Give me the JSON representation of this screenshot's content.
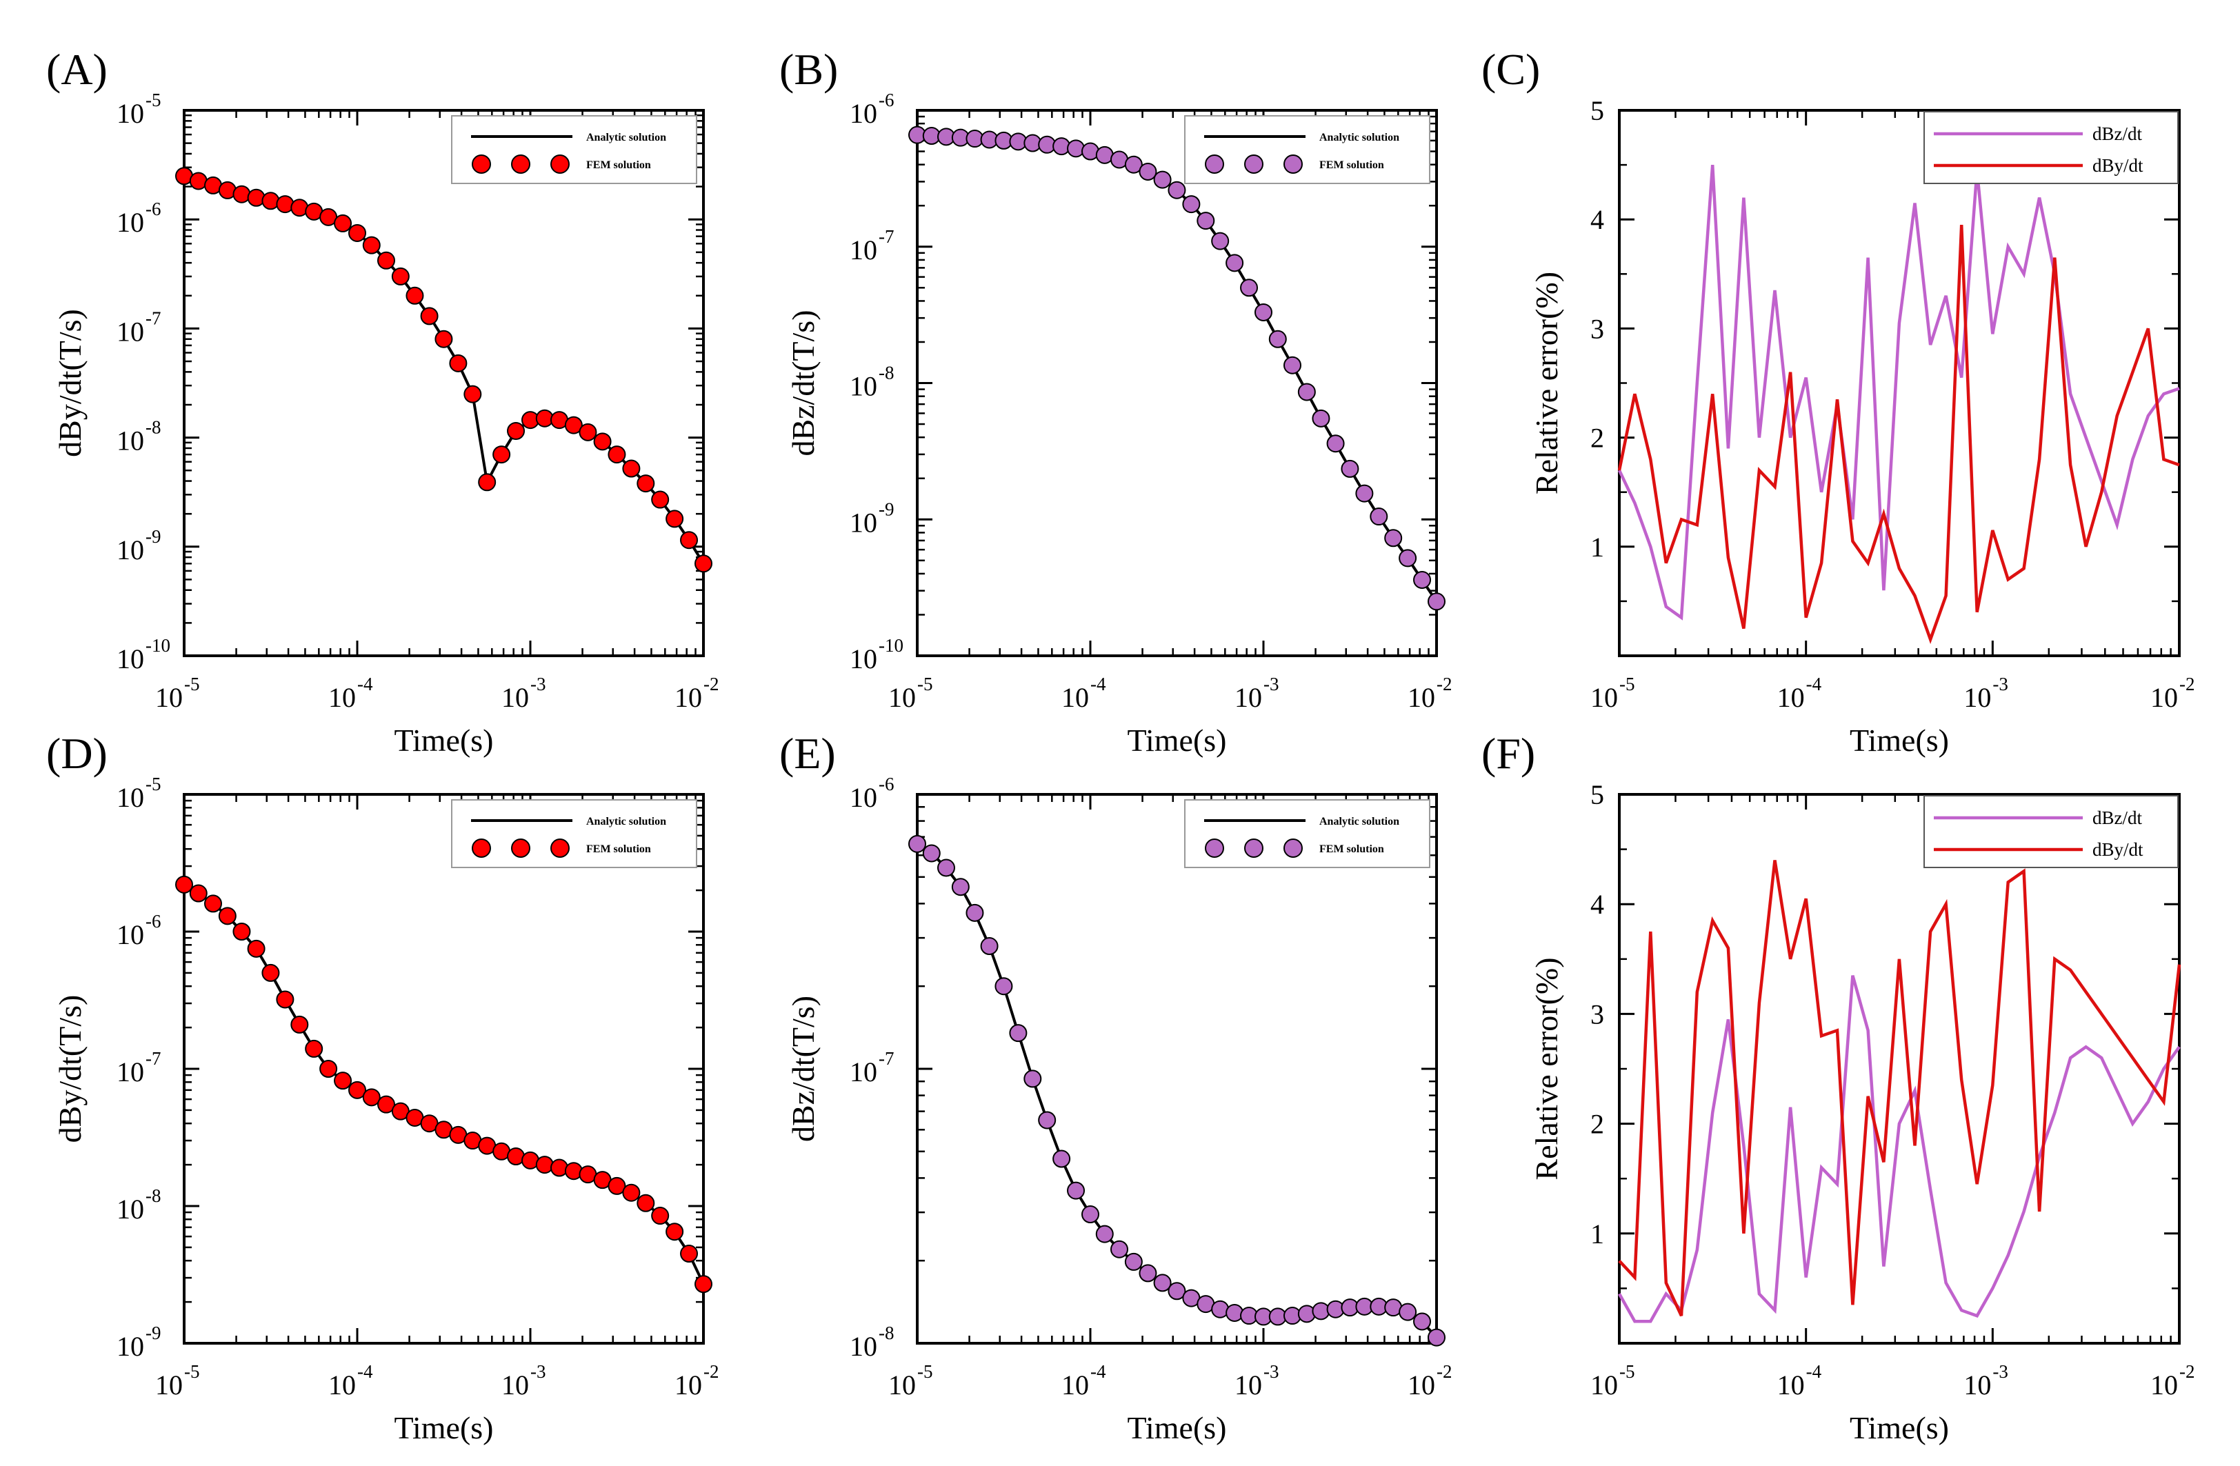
{
  "colors": {
    "analytic": "#000000",
    "red_marker": "#ff0000",
    "purple_marker": "#b86cc4",
    "line_dBz": "#c062cc",
    "line_dBy": "#dd1010"
  },
  "chart_data": [
    {
      "id": "A",
      "panel_label": "(A)",
      "type": "line+scatter",
      "yscale": "log",
      "xlabel": "Time(s)",
      "ylabel": "dBy/dt(T/s)",
      "x_ticks": [
        "10",
        "10",
        "10",
        "10"
      ],
      "x_tick_exponents": [
        "-5",
        "-4",
        "-3",
        "-2"
      ],
      "y_ticks": [
        "10",
        "10",
        "10",
        "10",
        "10",
        "10"
      ],
      "y_tick_exponents": [
        "-5",
        "-6",
        "-7",
        "-8",
        "-9",
        "-10"
      ],
      "xlim": [
        1e-05,
        0.01
      ],
      "ylim": [
        1e-10,
        1e-05
      ],
      "legend_position": "top-right",
      "legend": [
        "Analytic solution",
        "FEM solution"
      ],
      "marker_color": "red_marker",
      "x": [
        1e-05,
        1.21e-05,
        1.47e-05,
        1.78e-05,
        2.15e-05,
        2.61e-05,
        3.16e-05,
        3.83e-05,
        4.64e-05,
        5.62e-05,
        6.81e-05,
        8.25e-05,
        0.0001,
        0.000121,
        0.000147,
        0.000178,
        0.000215,
        0.000261,
        0.000316,
        0.000383,
        0.000464,
        0.000562,
        0.000681,
        0.000825,
        0.001,
        0.00121,
        0.00147,
        0.00178,
        0.00215,
        0.00261,
        0.00316,
        0.00383,
        0.00464,
        0.00562,
        0.00681,
        0.00825,
        0.01
      ],
      "y": [
        2.5e-06,
        2.25e-06,
        2.05e-06,
        1.85e-06,
        1.7e-06,
        1.58e-06,
        1.48e-06,
        1.38e-06,
        1.28e-06,
        1.18e-06,
        1.05e-06,
        9.2e-07,
        7.5e-07,
        5.8e-07,
        4.2e-07,
        3e-07,
        2e-07,
        1.3e-07,
        8e-08,
        4.8e-08,
        2.5e-08,
        3.9e-09,
        7e-09,
        1.15e-08,
        1.45e-08,
        1.5e-08,
        1.45e-08,
        1.3e-08,
        1.12e-08,
        9.2e-09,
        7e-09,
        5.2e-09,
        3.8e-09,
        2.7e-09,
        1.8e-09,
        1.15e-09,
        7e-10
      ]
    },
    {
      "id": "B",
      "panel_label": "(B)",
      "type": "line+scatter",
      "yscale": "log",
      "xlabel": "Time(s)",
      "ylabel": "dBz/dt(T/s)",
      "x_ticks": [
        "10",
        "10",
        "10",
        "10"
      ],
      "x_tick_exponents": [
        "-5",
        "-4",
        "-3",
        "-2"
      ],
      "y_ticks": [
        "10",
        "10",
        "10",
        "10",
        "10"
      ],
      "y_tick_exponents": [
        "-6",
        "-7",
        "-8",
        "-9",
        "-10"
      ],
      "xlim": [
        1e-05,
        0.01
      ],
      "ylim": [
        1e-10,
        1e-06
      ],
      "legend_position": "top-right",
      "legend": [
        "Analytic solution",
        "FEM solution"
      ],
      "marker_color": "purple_marker",
      "x": [
        1e-05,
        1.21e-05,
        1.47e-05,
        1.78e-05,
        2.15e-05,
        2.61e-05,
        3.16e-05,
        3.83e-05,
        4.64e-05,
        5.62e-05,
        6.81e-05,
        8.25e-05,
        0.0001,
        0.000121,
        0.000147,
        0.000178,
        0.000215,
        0.000261,
        0.000316,
        0.000383,
        0.000464,
        0.000562,
        0.000681,
        0.000825,
        0.001,
        0.00121,
        0.00147,
        0.00178,
        0.00215,
        0.00261,
        0.00316,
        0.00383,
        0.00464,
        0.00562,
        0.00681,
        0.00825,
        0.01
      ],
      "y": [
        6.6e-07,
        6.5e-07,
        6.4e-07,
        6.3e-07,
        6.2e-07,
        6.1e-07,
        6e-07,
        5.9e-07,
        5.75e-07,
        5.6e-07,
        5.45e-07,
        5.25e-07,
        5e-07,
        4.7e-07,
        4.35e-07,
        4e-07,
        3.55e-07,
        3.1e-07,
        2.6e-07,
        2.05e-07,
        1.55e-07,
        1.1e-07,
        7.6e-08,
        5e-08,
        3.3e-08,
        2.1e-08,
        1.35e-08,
        8.6e-09,
        5.5e-09,
        3.6e-09,
        2.35e-09,
        1.55e-09,
        1.05e-09,
        7.3e-10,
        5.2e-10,
        3.6e-10,
        2.5e-10
      ]
    },
    {
      "id": "C",
      "panel_label": "(C)",
      "type": "line",
      "yscale": "linear",
      "xlabel": "Time(s)",
      "ylabel": "Relative error(%)",
      "x_ticks": [
        "10",
        "10",
        "10",
        "10"
      ],
      "x_tick_exponents": [
        "-5",
        "-4",
        "-3",
        "-2"
      ],
      "y_ticks": [
        "1",
        "2",
        "3",
        "4",
        "5"
      ],
      "xlim": [
        1e-05,
        0.01
      ],
      "ylim": [
        0,
        5
      ],
      "legend_position": "top-right",
      "series": [
        {
          "name": "dBz/dt",
          "color": "line_dBz",
          "x": [
            1e-05,
            1.21e-05,
            1.47e-05,
            1.78e-05,
            2.15e-05,
            2.61e-05,
            3.16e-05,
            3.83e-05,
            4.64e-05,
            5.62e-05,
            6.81e-05,
            8.25e-05,
            0.0001,
            0.000121,
            0.000147,
            0.000178,
            0.000215,
            0.000261,
            0.000316,
            0.000383,
            0.000464,
            0.000562,
            0.000681,
            0.000825,
            0.001,
            0.00121,
            0.00147,
            0.00178,
            0.00215,
            0.00261,
            0.00316,
            0.00383,
            0.00464,
            0.00562,
            0.00681,
            0.00825,
            0.01
          ],
          "y": [
            1.7,
            1.4,
            1.0,
            0.45,
            0.35,
            2.5,
            4.5,
            1.9,
            4.2,
            2.0,
            3.35,
            2.0,
            2.55,
            1.5,
            2.3,
            1.25,
            3.65,
            0.6,
            3.05,
            4.15,
            2.85,
            3.3,
            2.55,
            4.45,
            2.95,
            3.75,
            3.5,
            4.2,
            3.5,
            2.4,
            2.0,
            1.6,
            1.2,
            1.8,
            2.2,
            2.4,
            2.45
          ]
        },
        {
          "name": "dBy/dt",
          "color": "line_dBy",
          "x": [
            1e-05,
            1.21e-05,
            1.47e-05,
            1.78e-05,
            2.15e-05,
            2.61e-05,
            3.16e-05,
            3.83e-05,
            4.64e-05,
            5.62e-05,
            6.81e-05,
            8.25e-05,
            0.0001,
            0.000121,
            0.000147,
            0.000178,
            0.000215,
            0.000261,
            0.000316,
            0.000383,
            0.000464,
            0.000562,
            0.000681,
            0.000825,
            0.001,
            0.00121,
            0.00147,
            0.00178,
            0.00215,
            0.00261,
            0.00316,
            0.00383,
            0.00464,
            0.00562,
            0.00681,
            0.00825,
            0.01
          ],
          "y": [
            1.7,
            2.4,
            1.8,
            0.85,
            1.25,
            1.2,
            2.4,
            0.9,
            0.25,
            1.7,
            1.55,
            2.6,
            0.35,
            0.85,
            2.35,
            1.05,
            0.85,
            1.3,
            0.8,
            0.55,
            0.15,
            0.55,
            3.95,
            0.4,
            1.15,
            0.7,
            0.8,
            1.8,
            3.65,
            1.75,
            1.0,
            1.5,
            2.2,
            2.6,
            3.0,
            1.8,
            1.75
          ]
        }
      ]
    },
    {
      "id": "D",
      "panel_label": "(D)",
      "type": "line+scatter",
      "yscale": "log",
      "xlabel": "Time(s)",
      "ylabel": "dBy/dt(T/s)",
      "x_ticks": [
        "10",
        "10",
        "10",
        "10"
      ],
      "x_tick_exponents": [
        "-5",
        "-4",
        "-3",
        "-2"
      ],
      "y_ticks": [
        "10",
        "10",
        "10",
        "10",
        "10"
      ],
      "y_tick_exponents": [
        "-5",
        "-6",
        "-7",
        "-8",
        "-9"
      ],
      "xlim": [
        1e-05,
        0.01
      ],
      "ylim": [
        1e-09,
        1e-05
      ],
      "legend_position": "top-right",
      "legend": [
        "Analytic solution",
        "FEM solution"
      ],
      "marker_color": "red_marker",
      "x": [
        1e-05,
        1.21e-05,
        1.47e-05,
        1.78e-05,
        2.15e-05,
        2.61e-05,
        3.16e-05,
        3.83e-05,
        4.64e-05,
        5.62e-05,
        6.81e-05,
        8.25e-05,
        0.0001,
        0.000121,
        0.000147,
        0.000178,
        0.000215,
        0.000261,
        0.000316,
        0.000383,
        0.000464,
        0.000562,
        0.000681,
        0.000825,
        0.001,
        0.00121,
        0.00147,
        0.00178,
        0.00215,
        0.00261,
        0.00316,
        0.00383,
        0.00464,
        0.00562,
        0.00681,
        0.00825,
        0.01
      ],
      "y": [
        2.2e-06,
        1.9e-06,
        1.6e-06,
        1.3e-06,
        1e-06,
        7.5e-07,
        5e-07,
        3.2e-07,
        2.1e-07,
        1.4e-07,
        1e-07,
        8.2e-08,
        7e-08,
        6.2e-08,
        5.5e-08,
        4.9e-08,
        4.4e-08,
        4e-08,
        3.6e-08,
        3.3e-08,
        3e-08,
        2.75e-08,
        2.5e-08,
        2.3e-08,
        2.15e-08,
        2e-08,
        1.9e-08,
        1.8e-08,
        1.7e-08,
        1.55e-08,
        1.4e-08,
        1.25e-08,
        1.05e-08,
        8.5e-09,
        6.5e-09,
        4.5e-09,
        2.7e-09
      ]
    },
    {
      "id": "E",
      "panel_label": "(E)",
      "type": "line+scatter",
      "yscale": "log",
      "xlabel": "Time(s)",
      "ylabel": "dBz/dt(T/s)",
      "x_ticks": [
        "10",
        "10",
        "10",
        "10"
      ],
      "x_tick_exponents": [
        "-5",
        "-4",
        "-3",
        "-2"
      ],
      "y_ticks": [
        "10",
        "10",
        "10"
      ],
      "y_tick_exponents": [
        "-6",
        "-7",
        "-8"
      ],
      "xlim": [
        1e-05,
        0.01
      ],
      "ylim": [
        1e-08,
        1e-06
      ],
      "legend_position": "top-right",
      "legend": [
        "Analytic solution",
        "FEM solution"
      ],
      "marker_color": "purple_marker",
      "x": [
        1e-05,
        1.21e-05,
        1.47e-05,
        1.78e-05,
        2.15e-05,
        2.61e-05,
        3.16e-05,
        3.83e-05,
        4.64e-05,
        5.62e-05,
        6.81e-05,
        8.25e-05,
        0.0001,
        0.000121,
        0.000147,
        0.000178,
        0.000215,
        0.000261,
        0.000316,
        0.000383,
        0.000464,
        0.000562,
        0.000681,
        0.000825,
        0.001,
        0.00121,
        0.00147,
        0.00178,
        0.00215,
        0.00261,
        0.00316,
        0.00383,
        0.00464,
        0.00562,
        0.00681,
        0.00825,
        0.01
      ],
      "y": [
        6.6e-07,
        6.1e-07,
        5.4e-07,
        4.6e-07,
        3.7e-07,
        2.8e-07,
        2e-07,
        1.35e-07,
        9.2e-08,
        6.5e-08,
        4.7e-08,
        3.6e-08,
        2.95e-08,
        2.5e-08,
        2.2e-08,
        1.98e-08,
        1.8e-08,
        1.66e-08,
        1.55e-08,
        1.46e-08,
        1.39e-08,
        1.33e-08,
        1.29e-08,
        1.26e-08,
        1.25e-08,
        1.25e-08,
        1.26e-08,
        1.28e-08,
        1.31e-08,
        1.33e-08,
        1.35e-08,
        1.36e-08,
        1.36e-08,
        1.35e-08,
        1.3e-08,
        1.2e-08,
        1.05e-08
      ]
    },
    {
      "id": "F",
      "panel_label": "(F)",
      "type": "line",
      "yscale": "linear",
      "xlabel": "Time(s)",
      "ylabel": "Relative error(%)",
      "x_ticks": [
        "10",
        "10",
        "10",
        "10"
      ],
      "x_tick_exponents": [
        "-5",
        "-4",
        "-3",
        "-2"
      ],
      "y_ticks": [
        "1",
        "2",
        "3",
        "4",
        "5"
      ],
      "xlim": [
        1e-05,
        0.01
      ],
      "ylim": [
        0,
        5
      ],
      "legend_position": "top-right",
      "series": [
        {
          "name": "dBz/dt",
          "color": "line_dBz",
          "x": [
            1e-05,
            1.21e-05,
            1.47e-05,
            1.78e-05,
            2.15e-05,
            2.61e-05,
            3.16e-05,
            3.83e-05,
            4.64e-05,
            5.62e-05,
            6.81e-05,
            8.25e-05,
            0.0001,
            0.000121,
            0.000147,
            0.000178,
            0.000215,
            0.000261,
            0.000316,
            0.000383,
            0.000464,
            0.000562,
            0.000681,
            0.000825,
            0.001,
            0.00121,
            0.00147,
            0.00178,
            0.00215,
            0.00261,
            0.00316,
            0.00383,
            0.00464,
            0.00562,
            0.00681,
            0.00825,
            0.01
          ],
          "y": [
            0.45,
            0.2,
            0.2,
            0.45,
            0.3,
            0.85,
            2.1,
            2.95,
            1.8,
            0.45,
            0.3,
            2.15,
            0.6,
            1.6,
            1.45,
            3.35,
            2.85,
            0.7,
            2.0,
            2.3,
            1.4,
            0.55,
            0.3,
            0.25,
            0.5,
            0.8,
            1.2,
            1.7,
            2.1,
            2.6,
            2.7,
            2.6,
            2.3,
            2.0,
            2.2,
            2.5,
            2.7
          ]
        },
        {
          "name": "dBy/dt",
          "color": "line_dBy",
          "x": [
            1e-05,
            1.21e-05,
            1.47e-05,
            1.78e-05,
            2.15e-05,
            2.61e-05,
            3.16e-05,
            3.83e-05,
            4.64e-05,
            5.62e-05,
            6.81e-05,
            8.25e-05,
            0.0001,
            0.000121,
            0.000147,
            0.000178,
            0.000215,
            0.000261,
            0.000316,
            0.000383,
            0.000464,
            0.000562,
            0.000681,
            0.000825,
            0.001,
            0.00121,
            0.00147,
            0.00178,
            0.00215,
            0.00261,
            0.00316,
            0.00383,
            0.00464,
            0.00562,
            0.00681,
            0.00825,
            0.01
          ],
          "y": [
            0.75,
            0.6,
            3.75,
            0.55,
            0.25,
            3.2,
            3.85,
            3.6,
            1.0,
            3.1,
            4.4,
            3.5,
            4.05,
            2.8,
            2.85,
            0.35,
            2.25,
            1.65,
            3.5,
            1.8,
            3.75,
            4.0,
            2.4,
            1.45,
            2.35,
            4.2,
            4.3,
            1.2,
            3.5,
            3.4,
            3.2,
            3.0,
            2.8,
            2.6,
            2.4,
            2.2,
            3.45
          ]
        }
      ]
    }
  ]
}
